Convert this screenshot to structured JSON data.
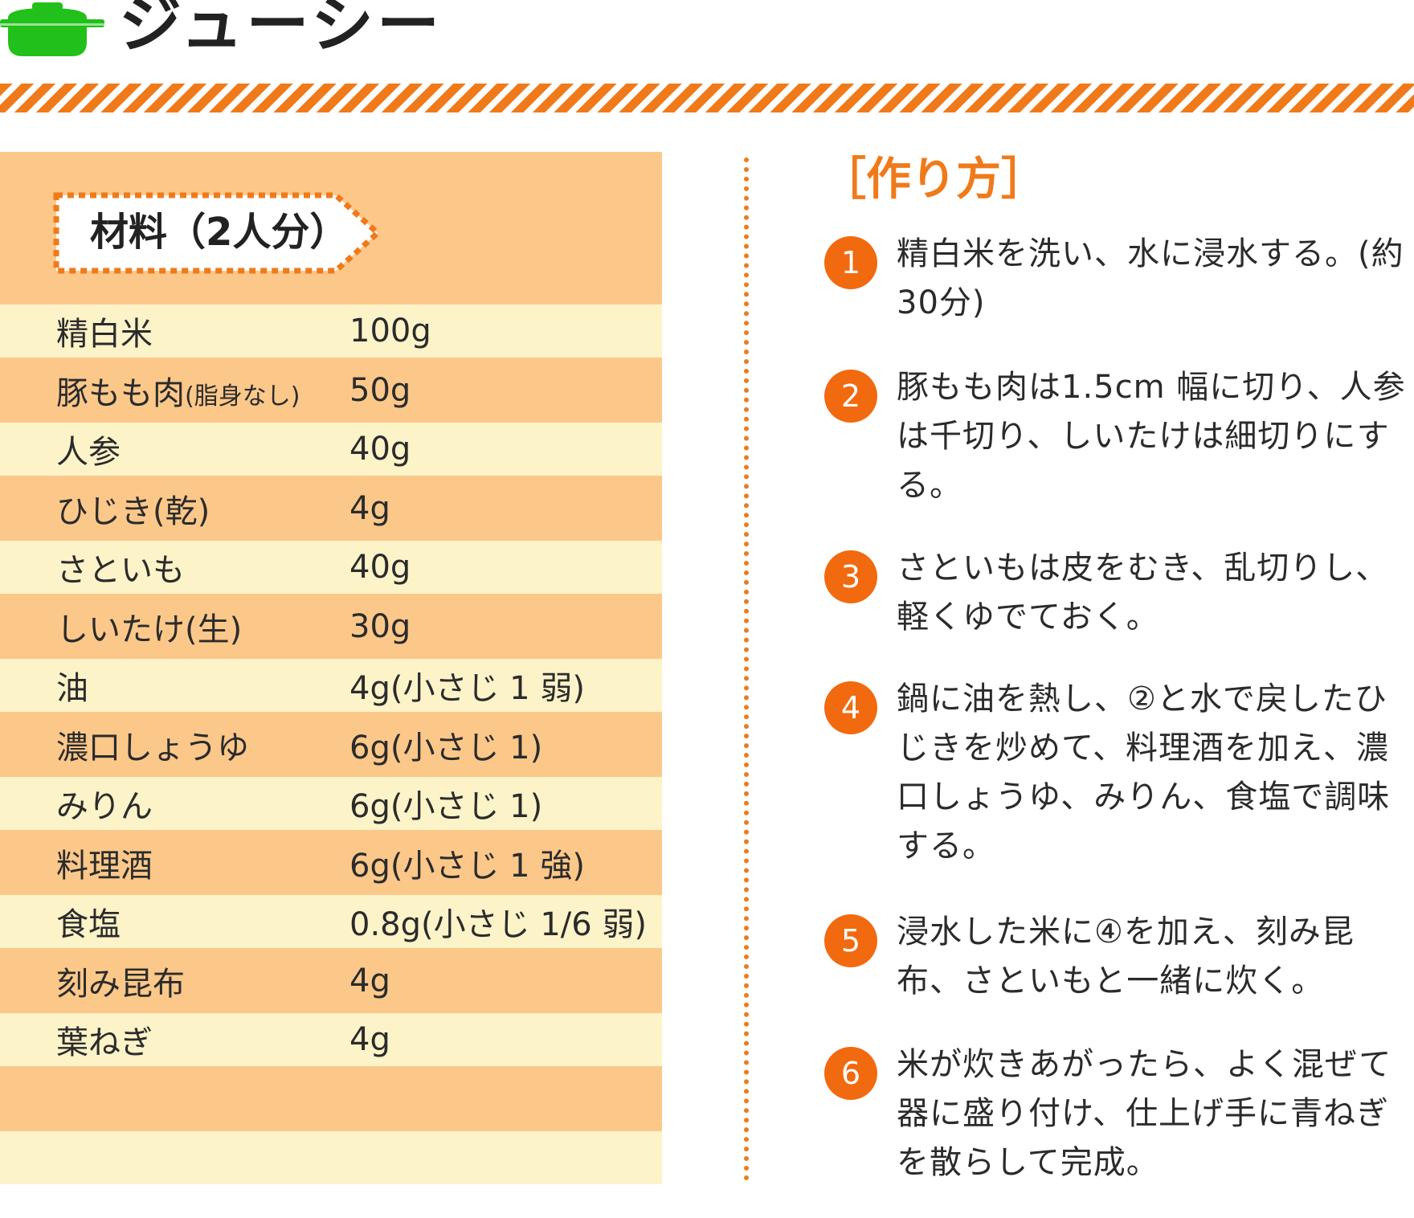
{
  "header": {
    "title": "ジューシー",
    "icon": "pot-icon",
    "icon_color": "#22c01a",
    "stripe_color": "#f07a1a"
  },
  "ingredients": {
    "heading": "材料（2人分）",
    "rows": [
      {
        "name": "精白米",
        "note": "",
        "amount": "100g"
      },
      {
        "name": "豚もも肉",
        "note": "(脂身なし)",
        "amount": "50g"
      },
      {
        "name": "人参",
        "note": "",
        "amount": "40g"
      },
      {
        "name": "ひじき(乾)",
        "note": "",
        "amount": "4g"
      },
      {
        "name": "さといも",
        "note": "",
        "amount": "40g"
      },
      {
        "name": "しいたけ(生)",
        "note": "",
        "amount": "30g"
      },
      {
        "name": "油",
        "note": "",
        "amount": "4g(小さじ 1 弱)"
      },
      {
        "name": "濃口しょうゆ",
        "note": "",
        "amount": "6g(小さじ 1)"
      },
      {
        "name": "みりん",
        "note": "",
        "amount": "6g(小さじ 1)"
      },
      {
        "name": "料理酒",
        "note": "",
        "amount": "6g(小さじ 1 強)"
      },
      {
        "name": "食塩",
        "note": "",
        "amount": "0.8g(小さじ 1/6 弱)"
      },
      {
        "name": "刻み昆布",
        "note": "",
        "amount": "4g"
      },
      {
        "name": "葉ねぎ",
        "note": "",
        "amount": "4g"
      }
    ],
    "colors": {
      "light": "#fdf3c9",
      "dark": "#fbc88a"
    }
  },
  "method": {
    "heading": "［作り方］",
    "accent_color": "#f26a0f",
    "steps": [
      {
        "num": "1",
        "text": "精白米を洗い、水に浸水する。(約30分)"
      },
      {
        "num": "2",
        "text": "豚もも肉は1.5cm 幅に切り、人参は千切り、しいたけは細切りにする。"
      },
      {
        "num": "3",
        "text": "さといもは皮をむき、乱切りし、軽くゆでておく。"
      },
      {
        "num": "4",
        "text": "鍋に油を熱し、②と水で戻したひじきを炒めて、料理酒を加え、濃口しょうゆ、みりん、食塩で調味する。"
      },
      {
        "num": "5",
        "text": "浸水した米に④を加え、刻み昆布、さといもと一緒に炊く。"
      },
      {
        "num": "6",
        "text": "米が炊きあがったら、よく混ぜて器に盛り付け、仕上げ手に青ねぎを散らして完成。"
      }
    ]
  }
}
